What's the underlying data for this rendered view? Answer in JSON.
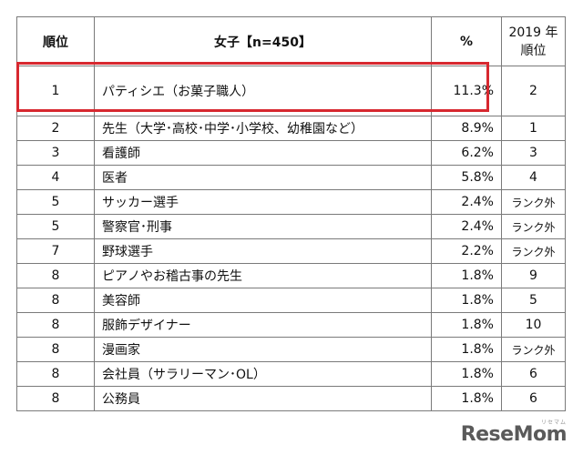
{
  "table": {
    "headers": {
      "rank": "順位",
      "job": "女子【n=450】",
      "pct": "%",
      "prev_line1": "2019 年",
      "prev_line2": "順位"
    },
    "rows": [
      {
        "rank": "1",
        "job": "パティシエ（お菓子職人）",
        "pct": "11.3%",
        "prev": "2"
      },
      {
        "rank": "2",
        "job": "先生（大学･高校･中学･小学校、幼稚園など）",
        "pct": "8.9%",
        "prev": "1"
      },
      {
        "rank": "3",
        "job": "看護師",
        "pct": "6.2%",
        "prev": "3"
      },
      {
        "rank": "4",
        "job": "医者",
        "pct": "5.8%",
        "prev": "4"
      },
      {
        "rank": "5",
        "job": "サッカー選手",
        "pct": "2.4%",
        "prev": "ランク外"
      },
      {
        "rank": "5",
        "job": "警察官･刑事",
        "pct": "2.4%",
        "prev": "ランク外"
      },
      {
        "rank": "7",
        "job": "野球選手",
        "pct": "2.2%",
        "prev": "ランク外"
      },
      {
        "rank": "8",
        "job": "ピアノやお稽古事の先生",
        "pct": "1.8%",
        "prev": "9"
      },
      {
        "rank": "8",
        "job": "美容師",
        "pct": "1.8%",
        "prev": "5"
      },
      {
        "rank": "8",
        "job": "服飾デザイナー",
        "pct": "1.8%",
        "prev": "10"
      },
      {
        "rank": "8",
        "job": "漫画家",
        "pct": "1.8%",
        "prev": "ランク外"
      },
      {
        "rank": "8",
        "job": "会社員（サラリーマン･OL）",
        "pct": "1.8%",
        "prev": "6"
      },
      {
        "rank": "8",
        "job": "公務員",
        "pct": "1.8%",
        "prev": "6"
      }
    ]
  },
  "highlight_color": "#d7282f",
  "logo": {
    "text": "ReseMom",
    "sub": "リセマム"
  }
}
